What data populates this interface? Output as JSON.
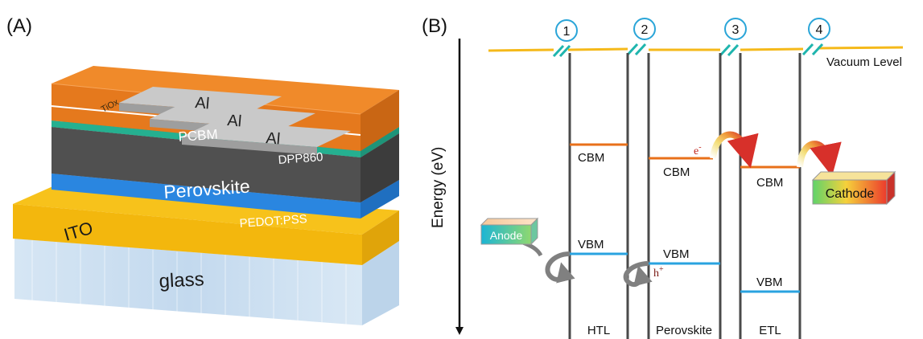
{
  "panel_a": {
    "label": "(A)",
    "layers": {
      "al": "Al",
      "tiox": "TiOx",
      "pcbm": "PCBM",
      "dpp": "DPP860",
      "perovskite": "Perovskite",
      "pedot": "PEDOT:PSS",
      "ito": "ITO",
      "glass": "glass"
    }
  },
  "panel_b": {
    "label": "(B)",
    "axis_label": "Energy (eV)",
    "vacuum_label": "Vacuum Level",
    "interfaces": [
      "1",
      "2",
      "3",
      "4"
    ],
    "cbm": "CBM",
    "vbm": "VBM",
    "electron": "e",
    "electron_sup": "-",
    "hole": "h",
    "hole_sup": "+",
    "anode": "Anode",
    "cathode": "Cathode",
    "columns": [
      "HTL",
      "Perovskite",
      "ETL"
    ],
    "colors": {
      "vacuum": "#f5b91a",
      "cbm": "#e8701a",
      "vbm": "#29a3e0",
      "break": "#1fb5ae",
      "column": "#4a4a4a"
    }
  }
}
